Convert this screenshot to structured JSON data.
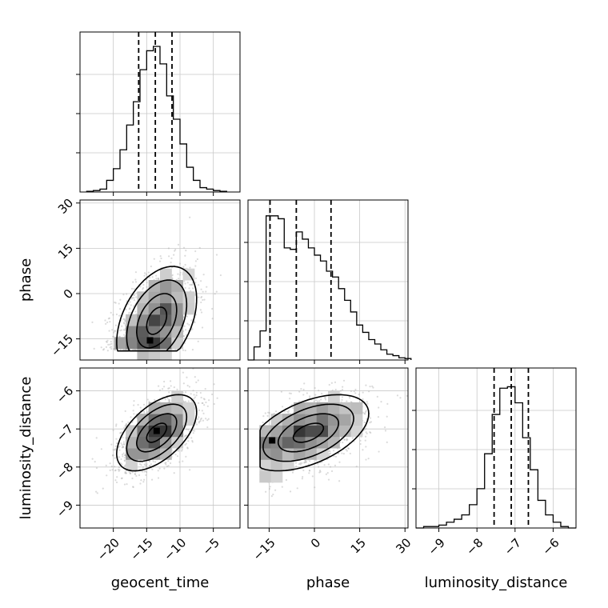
{
  "chart_data": {
    "type": "corner",
    "parameters": [
      "geocent_time",
      "phase",
      "luminosity_distance"
    ],
    "grid": true,
    "hist_color": "#000000",
    "scatter_color": "#b0b0b0",
    "axes": {
      "geocent_time": {
        "range": [
          -25,
          -1
        ],
        "ticks": [
          -20,
          -15,
          -10,
          -5
        ],
        "tick_labels": [
          "−20",
          "−15",
          "−10",
          "−5"
        ]
      },
      "phase": {
        "range": [
          -22,
          31
        ],
        "ticks": [
          -15,
          0,
          15,
          30
        ],
        "tick_labels": [
          "−15",
          "0",
          "15",
          "30"
        ]
      },
      "luminosity_distance": {
        "range": [
          -9.6,
          -5.4
        ],
        "ticks": [
          -9,
          -8,
          -7,
          -6
        ],
        "tick_labels": [
          "−9",
          "−8",
          "−7",
          "−6"
        ]
      }
    },
    "marginals": [
      {
        "parameter": "geocent_time",
        "bin_edges": [
          -24,
          -23,
          -22,
          -21,
          -20,
          -19,
          -18,
          -17,
          -16,
          -15,
          -14,
          -13,
          -12,
          -11,
          -10,
          -9,
          -8,
          -7,
          -6,
          -5,
          -4,
          -3
        ],
        "counts": [
          0.005,
          0.01,
          0.02,
          0.08,
          0.16,
          0.29,
          0.46,
          0.62,
          0.84,
          0.97,
          1.0,
          0.88,
          0.66,
          0.5,
          0.33,
          0.17,
          0.08,
          0.03,
          0.02,
          0.01,
          0.005
        ],
        "quantiles": [
          -16.2,
          -13.7,
          -11.2
        ]
      },
      {
        "parameter": "phase",
        "bin_edges": [
          -22,
          -20,
          -18,
          -16,
          -14,
          -12,
          -10,
          -8,
          -6,
          -4,
          -2,
          0,
          2,
          4,
          6,
          8,
          10,
          12,
          14,
          16,
          18,
          20,
          22,
          24,
          26,
          28,
          30,
          32
        ],
        "counts": [
          0.0,
          0.09,
          0.2,
          0.99,
          0.99,
          0.97,
          0.77,
          0.76,
          0.88,
          0.83,
          0.77,
          0.72,
          0.68,
          0.61,
          0.57,
          0.49,
          0.41,
          0.33,
          0.24,
          0.19,
          0.14,
          0.11,
          0.07,
          0.04,
          0.03,
          0.015,
          0.01
        ],
        "quantiles": [
          -14.7,
          -6.0,
          5.5
        ]
      },
      {
        "parameter": "luminosity_distance",
        "bin_edges": [
          -9.6,
          -9.4,
          -9.2,
          -9.0,
          -8.8,
          -8.6,
          -8.4,
          -8.2,
          -8.0,
          -7.8,
          -7.6,
          -7.4,
          -7.2,
          -7.0,
          -6.8,
          -6.6,
          -6.4,
          -6.2,
          -6.0,
          -5.8,
          -5.6,
          -5.4
        ],
        "counts": [
          0.0,
          0.01,
          0.01,
          0.02,
          0.04,
          0.06,
          0.09,
          0.16,
          0.27,
          0.51,
          0.78,
          0.96,
          0.97,
          0.86,
          0.62,
          0.4,
          0.19,
          0.09,
          0.04,
          0.01,
          0.0
        ],
        "quantiles": [
          -7.55,
          -7.1,
          -6.65
        ]
      }
    ],
    "joint": [
      {
        "x": "geocent_time",
        "y": "phase",
        "center": [
          -13.5,
          -9
        ],
        "sd": [
          3.0,
          9.0
        ],
        "rho": 0.4,
        "min_y": -19,
        "peak": [
          -14.5,
          -15.5
        ]
      },
      {
        "x": "geocent_time",
        "y": "luminosity_distance",
        "center": [
          -13.5,
          -7.1
        ],
        "sd": [
          3.0,
          0.5
        ],
        "rho": 0.55,
        "peak": [
          -13.5,
          -7.05
        ]
      },
      {
        "x": "phase",
        "y": "luminosity_distance",
        "center": [
          -2,
          -7.1
        ],
        "sd": [
          10,
          0.5
        ],
        "rho": 0.5,
        "min_x": -18,
        "peak": [
          -14,
          -7.3
        ]
      }
    ]
  }
}
